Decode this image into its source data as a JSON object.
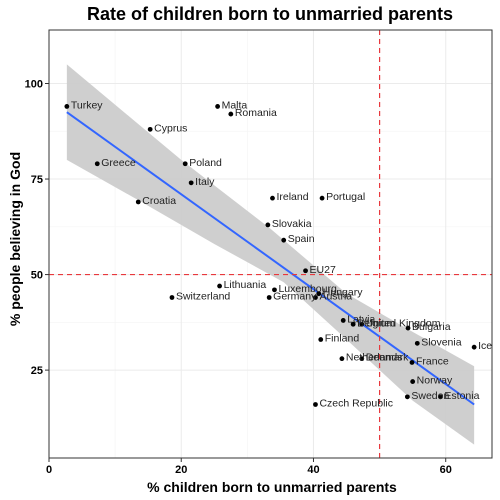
{
  "chart_data": {
    "type": "scatter",
    "title": "Rate of children born to unmarried parents",
    "xlabel": "% children born to unmarried parents",
    "ylabel": "% people believing in God",
    "xlim": [
      0,
      67
    ],
    "ylim": [
      2,
      114
    ],
    "xticks": [
      0,
      20,
      40,
      60
    ],
    "yticks": [
      25,
      50,
      75,
      100
    ],
    "grid": true,
    "reference_lines": {
      "x": 50,
      "y": 50,
      "color": "#e8383d"
    },
    "trend": {
      "x_start": 2.7,
      "y_start": 92.5,
      "x_end": 64.3,
      "y_end": 16,
      "color": "#3366ff",
      "band_color": "#cccccc",
      "band_upper": [
        [
          2.7,
          105
        ],
        [
          20,
          80
        ],
        [
          33.5,
          62
        ],
        [
          45,
          45
        ],
        [
          55,
          35
        ],
        [
          64.3,
          26
        ]
      ],
      "band_lower": [
        [
          2.7,
          80
        ],
        [
          14,
          69
        ],
        [
          25,
          58
        ],
        [
          35.5,
          48
        ],
        [
          45,
          33
        ],
        [
          55,
          17
        ],
        [
          64.3,
          5.5
        ]
      ]
    },
    "points": [
      {
        "label": "Turkey",
        "x": 2.7,
        "y": 94
      },
      {
        "label": "Malta",
        "x": 25.5,
        "y": 94
      },
      {
        "label": "Romania",
        "x": 27.5,
        "y": 92
      },
      {
        "label": "Cyprus",
        "x": 15.3,
        "y": 88
      },
      {
        "label": "Greece",
        "x": 7.3,
        "y": 79
      },
      {
        "label": "Poland",
        "x": 20.6,
        "y": 79
      },
      {
        "label": "Italy",
        "x": 21.5,
        "y": 74
      },
      {
        "label": "Croatia",
        "x": 13.5,
        "y": 69
      },
      {
        "label": "Ireland",
        "x": 33.8,
        "y": 70
      },
      {
        "label": "Portugal",
        "x": 41.3,
        "y": 70
      },
      {
        "label": "Slovakia",
        "x": 33.1,
        "y": 63
      },
      {
        "label": "Spain",
        "x": 35.5,
        "y": 59
      },
      {
        "label": "EU27",
        "x": 38.8,
        "y": 51
      },
      {
        "label": "Lithuania",
        "x": 25.8,
        "y": 47
      },
      {
        "label": "Luxembourg",
        "x": 34.1,
        "y": 46
      },
      {
        "label": "Switzerland",
        "x": 18.6,
        "y": 44
      },
      {
        "label": "Germany",
        "x": 33.3,
        "y": 44
      },
      {
        "label": "Hungary",
        "x": 40.8,
        "y": 45
      },
      {
        "label": "Austria",
        "x": 40.3,
        "y": 44
      },
      {
        "label": "Latvia",
        "x": 44.5,
        "y": 38
      },
      {
        "label": "United Kingdom",
        "x": 47.3,
        "y": 37
      },
      {
        "label": "Belgium",
        "x": 46.0,
        "y": 37
      },
      {
        "label": "Bulgaria",
        "x": 54.3,
        "y": 36
      },
      {
        "label": "Slovenia",
        "x": 55.7,
        "y": 32
      },
      {
        "label": "Iceland",
        "x": 64.3,
        "y": 31
      },
      {
        "label": "Finland",
        "x": 41.1,
        "y": 33
      },
      {
        "label": "Netherlands",
        "x": 44.3,
        "y": 28
      },
      {
        "label": "Denmark",
        "x": 47.3,
        "y": 28
      },
      {
        "label": "France",
        "x": 54.9,
        "y": 27
      },
      {
        "label": "Norway",
        "x": 55.0,
        "y": 22
      },
      {
        "label": "Sweden",
        "x": 54.2,
        "y": 18
      },
      {
        "label": "Estonia",
        "x": 59.2,
        "y": 18
      },
      {
        "label": "Czech Republic",
        "x": 40.3,
        "y": 16
      }
    ],
    "point_color": "#000000"
  }
}
